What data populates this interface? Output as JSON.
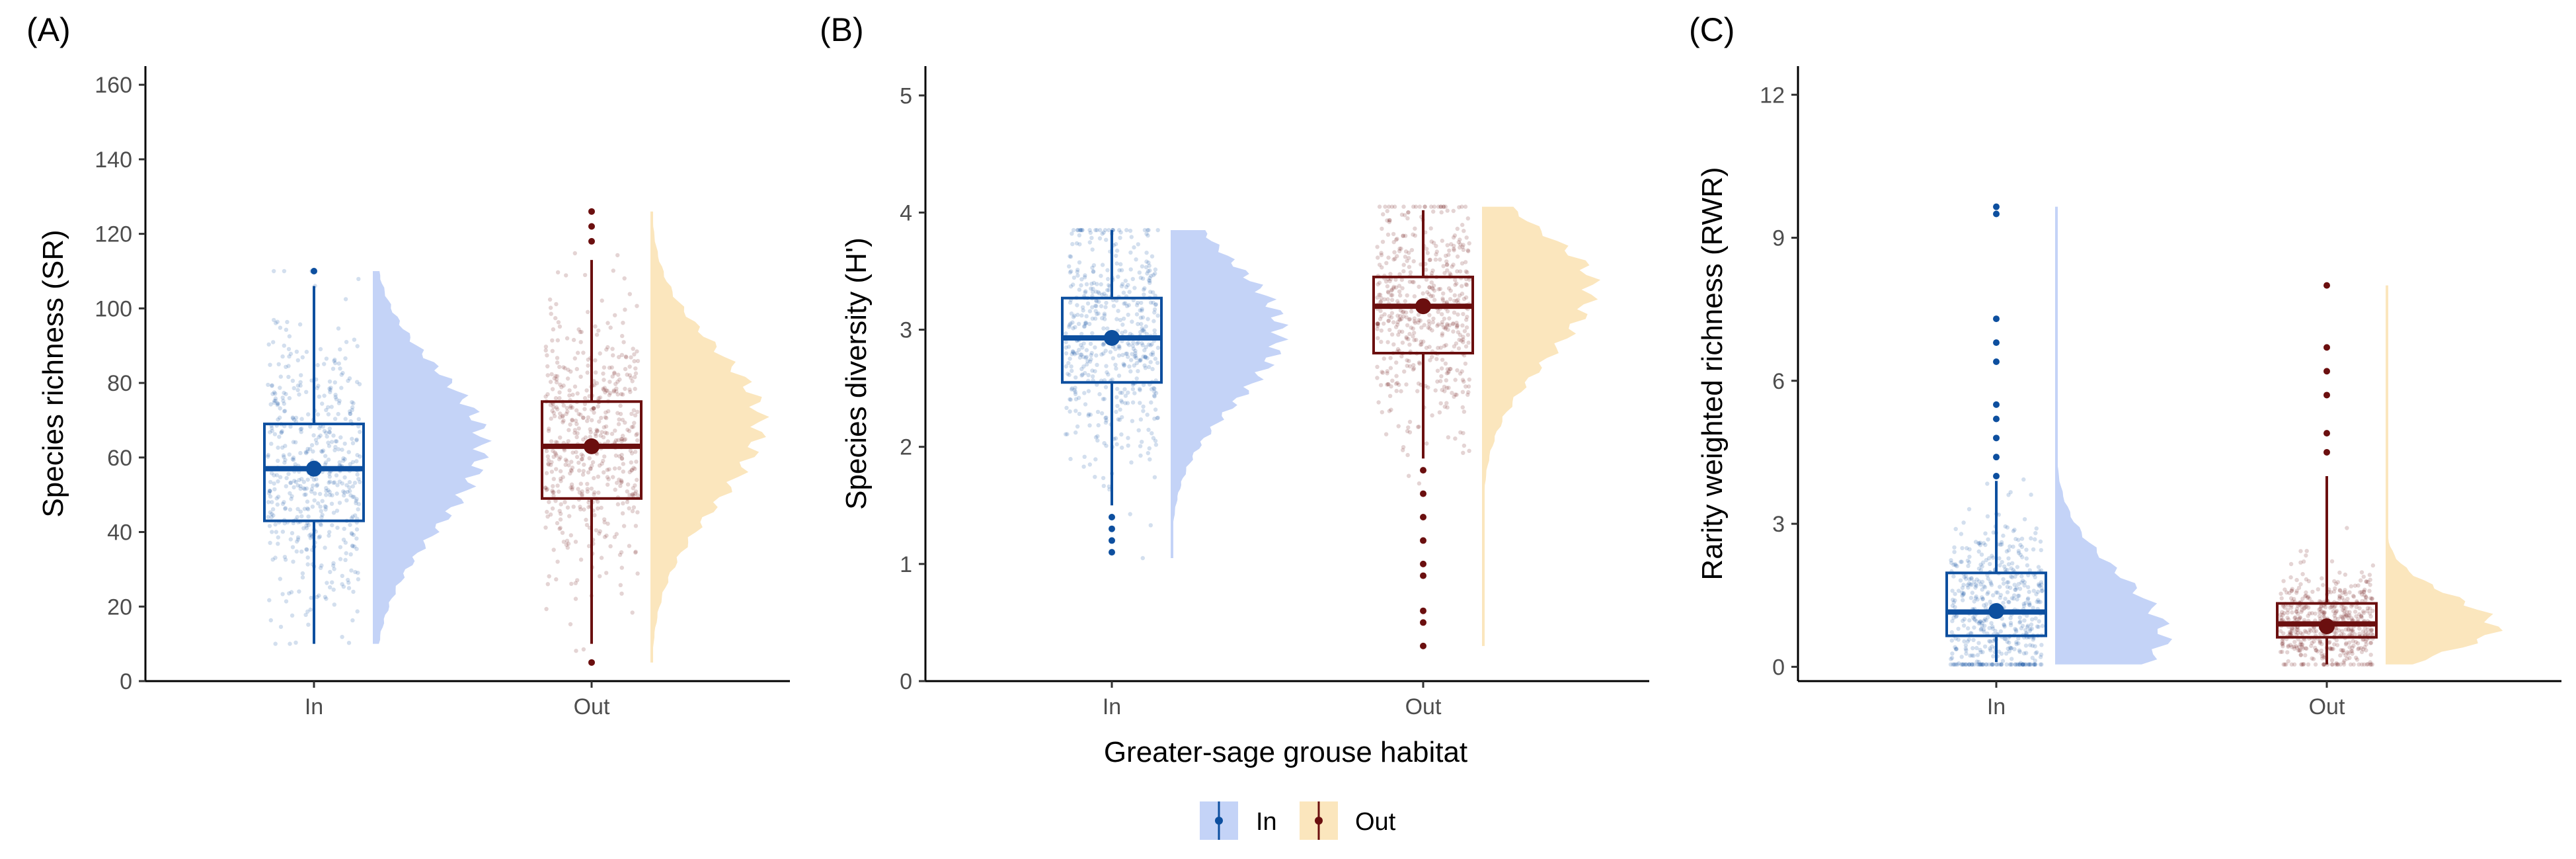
{
  "figure": {
    "x_axis_title": "Greater-sage grouse habitat"
  },
  "legend": {
    "items": [
      {
        "label": "In",
        "color": "#0d4f9f",
        "fill": "#c4d3f7"
      },
      {
        "label": "Out",
        "color": "#6b0f0f",
        "fill": "#fbe6bd"
      }
    ]
  },
  "chart_data": [
    {
      "type": "box",
      "panel_label": "(A)",
      "ylabel": "Species richness (SR)",
      "categories": [
        "In",
        "Out"
      ],
      "ylim": [
        0,
        165
      ],
      "yticks": [
        0,
        20,
        40,
        60,
        80,
        100,
        120,
        140,
        160
      ],
      "grid": false,
      "series": [
        {
          "name": "In",
          "color": "#0d4f9f",
          "fill": "#c4d3f7",
          "min": 10,
          "q1": 43,
          "median": 57,
          "q3": 69,
          "max": 106,
          "mean": 57,
          "outliers": [
            110
          ],
          "density_peak": 64,
          "density_range": [
            10,
            110
          ]
        },
        {
          "name": "Out",
          "color": "#6b0f0f",
          "fill": "#fbe6bd",
          "min": 10,
          "q1": 49,
          "median": 63,
          "q3": 75,
          "max": 113,
          "mean": 63,
          "outliers": [
            118,
            122,
            126,
            5
          ],
          "density_peak": 70,
          "density_range": [
            5,
            126
          ]
        }
      ]
    },
    {
      "type": "box",
      "panel_label": "(B)",
      "ylabel": "Species diversity (H')",
      "categories": [
        "In",
        "Out"
      ],
      "ylim": [
        0,
        5.25
      ],
      "yticks": [
        0,
        1,
        2,
        3,
        4,
        5
      ],
      "grid": false,
      "series": [
        {
          "name": "In",
          "color": "#0d4f9f",
          "fill": "#c4d3f7",
          "min": 1.5,
          "q1": 2.55,
          "median": 2.93,
          "q3": 3.27,
          "max": 3.85,
          "mean": 2.93,
          "outliers": [
            1.1,
            1.2,
            1.3,
            1.4
          ],
          "density_peak": 3.0,
          "density_range": [
            1.05,
            3.85
          ]
        },
        {
          "name": "Out",
          "color": "#6b0f0f",
          "fill": "#fbe6bd",
          "min": 1.9,
          "q1": 2.8,
          "median": 3.2,
          "q3": 3.45,
          "max": 4.02,
          "mean": 3.2,
          "outliers": [
            1.8,
            1.6,
            1.4,
            1.2,
            1.0,
            0.9,
            0.6,
            0.5,
            0.3
          ],
          "density_peak": 3.4,
          "density_range": [
            0.3,
            4.05
          ]
        }
      ]
    },
    {
      "type": "box",
      "panel_label": "(C)",
      "ylabel": "Rarity weighted richness (RWR)",
      "categories": [
        "In",
        "Out"
      ],
      "ylim": [
        -0.3,
        12.6
      ],
      "yticks": [
        0,
        3,
        6,
        9,
        12
      ],
      "grid": false,
      "series": [
        {
          "name": "In",
          "color": "#0d4f9f",
          "fill": "#c4d3f7",
          "min": 0.1,
          "q1": 0.65,
          "median": 1.15,
          "q3": 1.97,
          "max": 3.9,
          "mean": 1.17,
          "outliers": [
            4.0,
            4.4,
            4.8,
            5.2,
            5.5,
            6.4,
            6.8,
            7.3,
            9.5,
            9.65
          ],
          "density_peak": 0.6,
          "density_range": [
            0.05,
            9.65
          ]
        },
        {
          "name": "Out",
          "color": "#6b0f0f",
          "fill": "#fbe6bd",
          "min": 0.05,
          "q1": 0.62,
          "median": 0.9,
          "q3": 1.33,
          "max": 4.0,
          "mean": 0.85,
          "outliers": [
            4.5,
            4.9,
            5.7,
            6.2,
            6.7,
            8.0
          ],
          "density_peak": 0.8,
          "density_range": [
            0.05,
            8.0
          ]
        }
      ]
    }
  ]
}
